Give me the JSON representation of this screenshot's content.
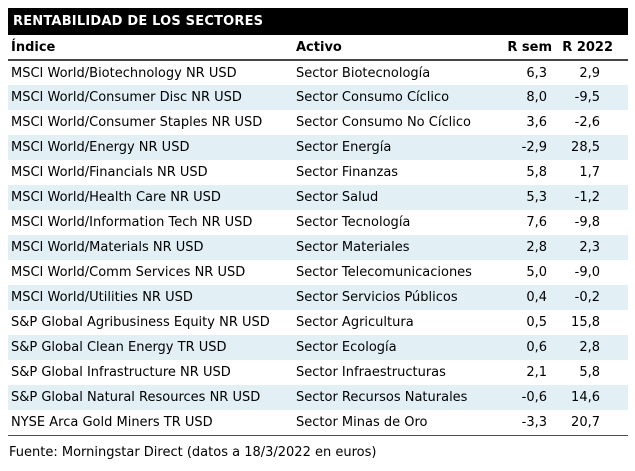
{
  "header": {
    "title": "RENTABILIDAD DE LOS SECTORES"
  },
  "table": {
    "columns": [
      {
        "key": "indice",
        "label": "Índice"
      },
      {
        "key": "activo",
        "label": "Activo"
      },
      {
        "key": "r_sem",
        "label": "R sem"
      },
      {
        "key": "r_2022",
        "label": "R 2022"
      }
    ],
    "rows": [
      {
        "indice": "MSCI World/Biotechnology NR USD",
        "activo": "Sector Biotecnología",
        "r_sem": "6,3",
        "r_2022": "2,9"
      },
      {
        "indice": "MSCI World/Consumer Disc NR USD",
        "activo": "Sector Consumo Cíclico",
        "r_sem": "8,0",
        "r_2022": "-9,5"
      },
      {
        "indice": "MSCI World/Consumer Staples NR USD",
        "activo": "Sector Consumo No Cíclico",
        "r_sem": "3,6",
        "r_2022": "-2,6"
      },
      {
        "indice": "MSCI World/Energy NR USD",
        "activo": "Sector Energía",
        "r_sem": "-2,9",
        "r_2022": "28,5"
      },
      {
        "indice": "MSCI World/Financials NR USD",
        "activo": "Sector Finanzas",
        "r_sem": "5,8",
        "r_2022": "1,7"
      },
      {
        "indice": "MSCI World/Health Care NR USD",
        "activo": "Sector Salud",
        "r_sem": "5,3",
        "r_2022": "-1,2"
      },
      {
        "indice": "MSCI World/Information Tech NR USD",
        "activo": "Sector Tecnología",
        "r_sem": "7,6",
        "r_2022": "-9,8"
      },
      {
        "indice": "MSCI World/Materials NR USD",
        "activo": "Sector Materiales",
        "r_sem": "2,8",
        "r_2022": "2,3"
      },
      {
        "indice": "MSCI World/Comm Services NR USD",
        "activo": "Sector Telecomunicaciones",
        "r_sem": "5,0",
        "r_2022": "-9,0"
      },
      {
        "indice": "MSCI World/Utilities NR USD",
        "activo": "Sector Servicios Públicos",
        "r_sem": "0,4",
        "r_2022": "-0,2"
      },
      {
        "indice": "S&P Global Agribusiness Equity NR USD",
        "activo": "Sector Agricultura",
        "r_sem": "0,5",
        "r_2022": "15,8"
      },
      {
        "indice": "S&P Global Clean Energy TR USD",
        "activo": "Sector Ecología",
        "r_sem": "0,6",
        "r_2022": "2,8"
      },
      {
        "indice": "S&P Global Infrastructure NR USD",
        "activo": "Sector Infraestructuras",
        "r_sem": "2,1",
        "r_2022": "5,8"
      },
      {
        "indice": "S&P Global Natural Resources NR USD",
        "activo": "Sector Recursos Naturales",
        "r_sem": "-0,6",
        "r_2022": "14,6"
      },
      {
        "indice": "NYSE Arca Gold Miners TR USD",
        "activo": "Sector Minas de Oro",
        "r_sem": "-3,3",
        "r_2022": "20,7"
      }
    ]
  },
  "footer": {
    "source": "Fuente: Morningstar Direct (datos a 18/3/2022 en euros)"
  },
  "colors": {
    "title_bg": "#000000",
    "title_text": "#ffffff",
    "row_stripe": "#e2f0f6",
    "divider": "#4d4d4d",
    "text": "#000000"
  }
}
